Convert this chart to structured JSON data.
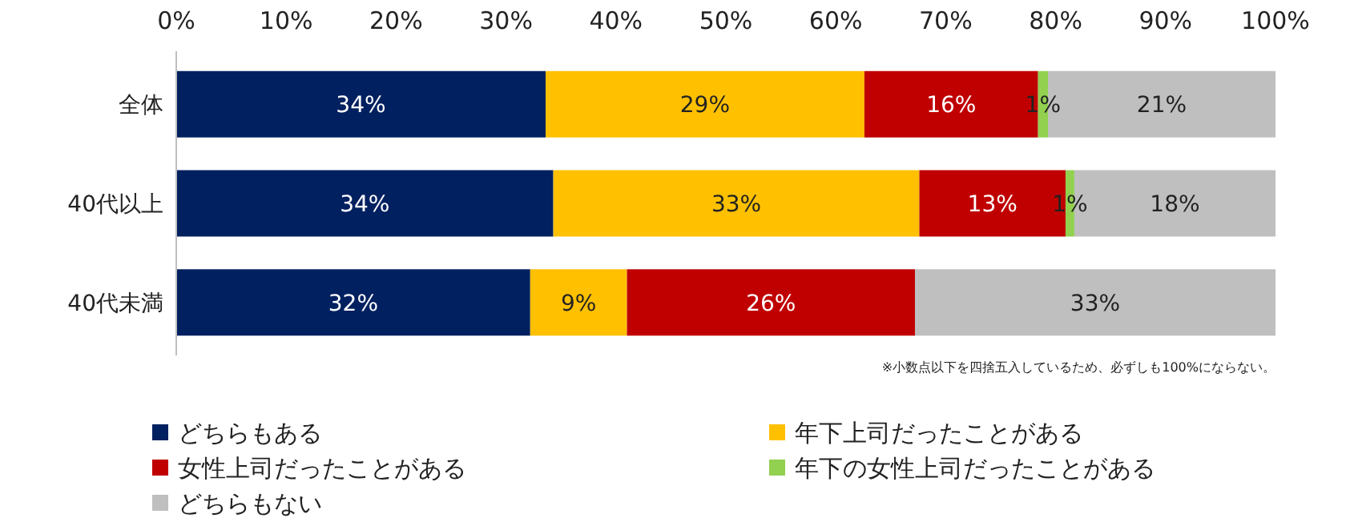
{
  "chart_data": {
    "type": "bar",
    "orientation": "horizontal",
    "stacked": true,
    "categories": [
      "全体",
      "40代以上",
      "40代未満"
    ],
    "series": [
      {
        "name": "どちらもある",
        "color": "#002060",
        "values": [
          33.6,
          34.3,
          32.2
        ],
        "value_labels": [
          "34%",
          "34%",
          "32%"
        ]
      },
      {
        "name": "年下上司だったことがある",
        "color": "#ffc000",
        "values": [
          29,
          33.3,
          8.8
        ],
        "value_labels": [
          "29%",
          "33%",
          "9%"
        ]
      },
      {
        "name": "女性上司だったことがある",
        "color": "#c00000",
        "values": [
          15.8,
          13.3,
          26.2
        ],
        "value_labels": [
          "16%",
          "13%",
          "26%"
        ]
      },
      {
        "name": "年下の女性上司だったことがある",
        "color": "#92d050",
        "values": [
          0.9,
          0.8,
          0
        ],
        "value_labels": [
          "1%",
          "1%",
          null
        ]
      },
      {
        "name": "どちらもない",
        "color": "#bfbfbf",
        "values": [
          20.7,
          18.3,
          32.8
        ],
        "value_labels": [
          "21%",
          "18%",
          "33%"
        ]
      }
    ],
    "xlim": [
      0,
      100
    ],
    "xticks": [
      {
        "value": 0,
        "label": "0%"
      },
      {
        "value": 10,
        "label": "10%"
      },
      {
        "value": 20,
        "label": "20%"
      },
      {
        "value": 30,
        "label": "30%"
      },
      {
        "value": 40,
        "label": "40%"
      },
      {
        "value": 50,
        "label": "50%"
      },
      {
        "value": 60,
        "label": "60%"
      },
      {
        "value": 70,
        "label": "70%"
      },
      {
        "value": 80,
        "label": "80%"
      },
      {
        "value": 90,
        "label": "90%"
      },
      {
        "value": 100,
        "label": "100%"
      }
    ],
    "grid": false,
    "legend": "bottom",
    "annotations": [
      "※小数点以下を四捨五入しているため、必ずしも100%にならない。"
    ]
  }
}
